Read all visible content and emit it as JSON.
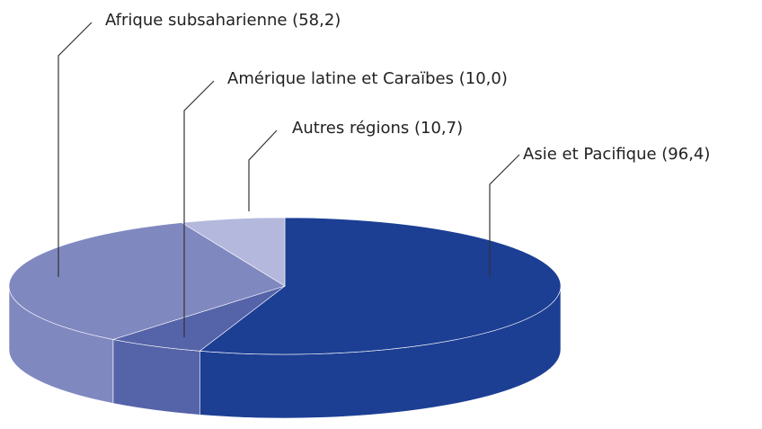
{
  "chart_data": {
    "type": "pie3d",
    "categories": [
      "Asie et Pacifique (96,4)",
      "Amérique latine et Caraïbes (10,0)",
      "Afrique subsaharienne (58,2)",
      "Autres régions (10,7)"
    ],
    "values": [
      96.4,
      10.0,
      58.2,
      10.7
    ],
    "colors": [
      "#1c3f94",
      "#5563a9",
      "#8088c0",
      "#b3b8dc"
    ]
  }
}
